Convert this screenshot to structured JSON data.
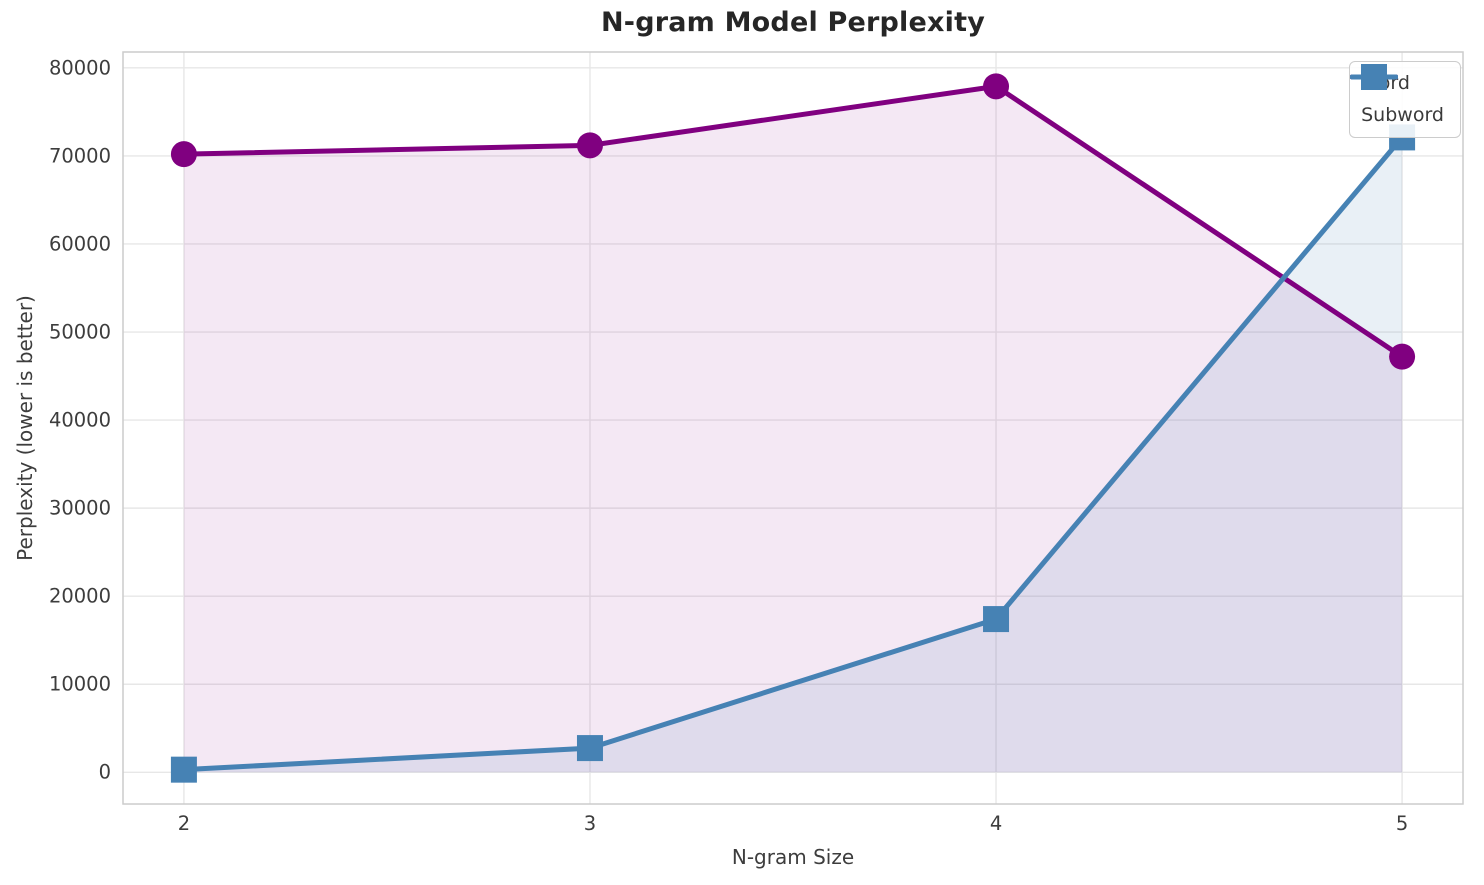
{
  "chart_data": {
    "type": "line",
    "title": "N-gram Model Perplexity",
    "xlabel": "N-gram Size",
    "ylabel": "Perplexity (lower is better)",
    "x": [
      2,
      3,
      4,
      5
    ],
    "xticks": [
      "2",
      "3",
      "4",
      "5"
    ],
    "yticks": [
      0,
      10000,
      20000,
      30000,
      40000,
      50000,
      60000,
      70000,
      80000
    ],
    "xlim": [
      1.85,
      5.15
    ],
    "ylim": [
      -3600,
      81800
    ],
    "grid": true,
    "area_fill_to_zero": true,
    "legend_position": "upper right",
    "series": [
      {
        "name": "Word",
        "marker": "circle",
        "color": "#800080",
        "fill_opacity": 0.09,
        "values": [
          70200,
          71200,
          77900,
          47200
        ]
      },
      {
        "name": "Subword",
        "marker": "square",
        "color": "#4682B4",
        "fill_opacity": 0.12,
        "values": [
          300,
          2750,
          17400,
          72100
        ]
      }
    ],
    "style": {
      "grid_color": "#e7e7e7",
      "spine_color": "#cccccc",
      "tick_color": "#3d3d3d",
      "title_color": "#262626",
      "background": "#ffffff",
      "line_width": 5,
      "marker_size": 26
    }
  }
}
